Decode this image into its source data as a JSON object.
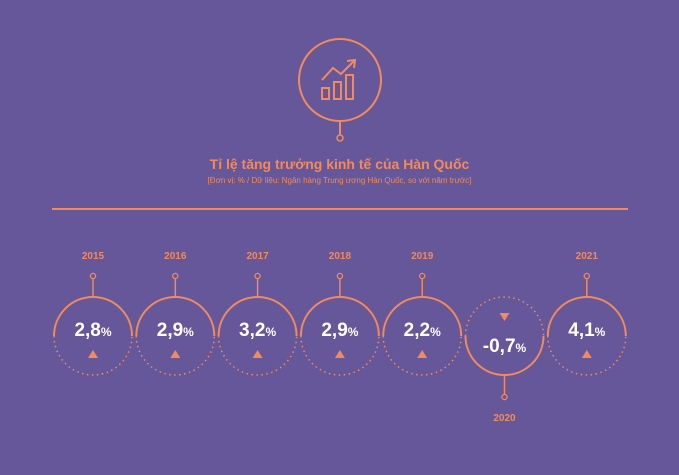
{
  "colors": {
    "background": "#65579a",
    "accent": "#f28a5c",
    "text": "#ffffff"
  },
  "header": {
    "icon": "bar-chart-trend-up-icon",
    "title": "Tỉ lệ tăng trưởng kinh tế của Hàn Quốc",
    "subtitle": "[Đơn vị: % / Dữ liệu: Ngân hàng Trung ương Hàn Quốc, so với năm trước]"
  },
  "chart_data": {
    "type": "bar",
    "title": "Tỉ lệ tăng trưởng kinh tế của Hàn Quốc",
    "subtitle": "[Đơn vị: % / Dữ liệu: Ngân hàng Trung ương Hàn Quốc, so với năm trước]",
    "unit": "%",
    "categories": [
      "2015",
      "2016",
      "2017",
      "2018",
      "2019",
      "2020",
      "2021"
    ],
    "values": [
      2.8,
      2.9,
      3.2,
      2.9,
      2.2,
      -0.7,
      4.1
    ],
    "labels": [
      "2,8",
      "2,9",
      "3,2",
      "2,9",
      "2,2",
      "-0,7",
      "4,1"
    ],
    "directions": [
      "up",
      "up",
      "up",
      "up",
      "up",
      "down",
      "up"
    ]
  }
}
